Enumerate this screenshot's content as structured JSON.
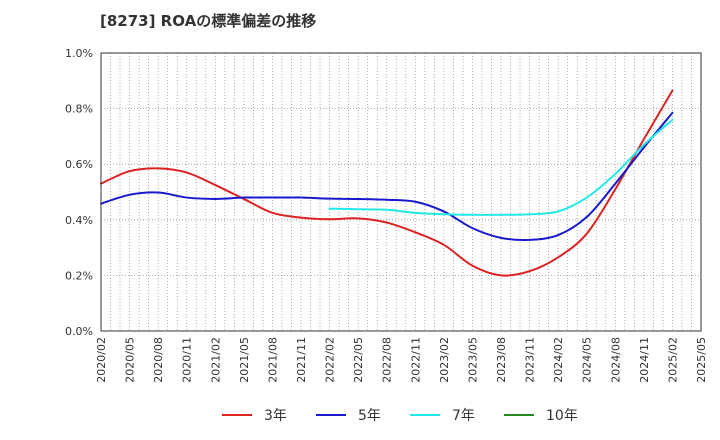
{
  "chart_data": {
    "type": "line",
    "title": "[8273]  ROAの標準偏差の推移",
    "xlabel": "",
    "ylabel": "",
    "x_ticks": [
      "2020/02",
      "2020/05",
      "2020/08",
      "2020/11",
      "2021/02",
      "2021/05",
      "2021/08",
      "2021/11",
      "2022/02",
      "2022/05",
      "2022/08",
      "2022/11",
      "2023/02",
      "2023/05",
      "2023/08",
      "2023/11",
      "2024/02",
      "2024/05",
      "2024/08",
      "2024/11",
      "2025/02",
      "2025/05"
    ],
    "y_ticks": [
      "0.0%",
      "0.2%",
      "0.4%",
      "0.6%",
      "0.8%",
      "1.0%"
    ],
    "ylim": [
      0,
      1.0
    ],
    "grid": true,
    "legend_position": "bottom",
    "series": [
      {
        "name": "3年",
        "color": "#dd2222",
        "points": [
          [
            "2020/02",
            0.53
          ],
          [
            "2020/05",
            0.575
          ],
          [
            "2020/08",
            0.585
          ],
          [
            "2020/11",
            0.57
          ],
          [
            "2021/02",
            0.525
          ],
          [
            "2021/05",
            0.475
          ],
          [
            "2021/08",
            0.425
          ],
          [
            "2021/11",
            0.408
          ],
          [
            "2022/02",
            0.402
          ],
          [
            "2022/05",
            0.405
          ],
          [
            "2022/08",
            0.39
          ],
          [
            "2022/11",
            0.355
          ],
          [
            "2023/02",
            0.31
          ],
          [
            "2023/05",
            0.235
          ],
          [
            "2023/08",
            0.2
          ],
          [
            "2023/11",
            0.215
          ],
          [
            "2024/02",
            0.265
          ],
          [
            "2024/05",
            0.35
          ],
          [
            "2024/08",
            0.51
          ],
          [
            "2024/11",
            0.69
          ],
          [
            "2025/02",
            0.865
          ]
        ]
      },
      {
        "name": "5年",
        "color": "#1a1acc",
        "points": [
          [
            "2020/02",
            0.458
          ],
          [
            "2020/05",
            0.49
          ],
          [
            "2020/08",
            0.498
          ],
          [
            "2020/11",
            0.48
          ],
          [
            "2021/02",
            0.475
          ],
          [
            "2021/05",
            0.48
          ],
          [
            "2021/08",
            0.48
          ],
          [
            "2021/11",
            0.48
          ],
          [
            "2022/02",
            0.476
          ],
          [
            "2022/05",
            0.475
          ],
          [
            "2022/08",
            0.472
          ],
          [
            "2022/11",
            0.465
          ],
          [
            "2023/02",
            0.43
          ],
          [
            "2023/05",
            0.37
          ],
          [
            "2023/08",
            0.335
          ],
          [
            "2023/11",
            0.328
          ],
          [
            "2024/02",
            0.345
          ],
          [
            "2024/05",
            0.41
          ],
          [
            "2024/08",
            0.53
          ],
          [
            "2024/11",
            0.66
          ],
          [
            "2025/02",
            0.785
          ]
        ]
      },
      {
        "name": "7年",
        "color": "#22e8e8",
        "points": [
          [
            "2022/02",
            0.44
          ],
          [
            "2022/05",
            0.438
          ],
          [
            "2022/08",
            0.436
          ],
          [
            "2022/11",
            0.425
          ],
          [
            "2023/02",
            0.42
          ],
          [
            "2023/05",
            0.418
          ],
          [
            "2023/08",
            0.418
          ],
          [
            "2023/11",
            0.42
          ],
          [
            "2024/02",
            0.43
          ],
          [
            "2024/05",
            0.48
          ],
          [
            "2024/08",
            0.565
          ],
          [
            "2024/11",
            0.67
          ],
          [
            "2025/02",
            0.76
          ]
        ]
      },
      {
        "name": "10年",
        "color": "#228822",
        "points": []
      }
    ]
  }
}
